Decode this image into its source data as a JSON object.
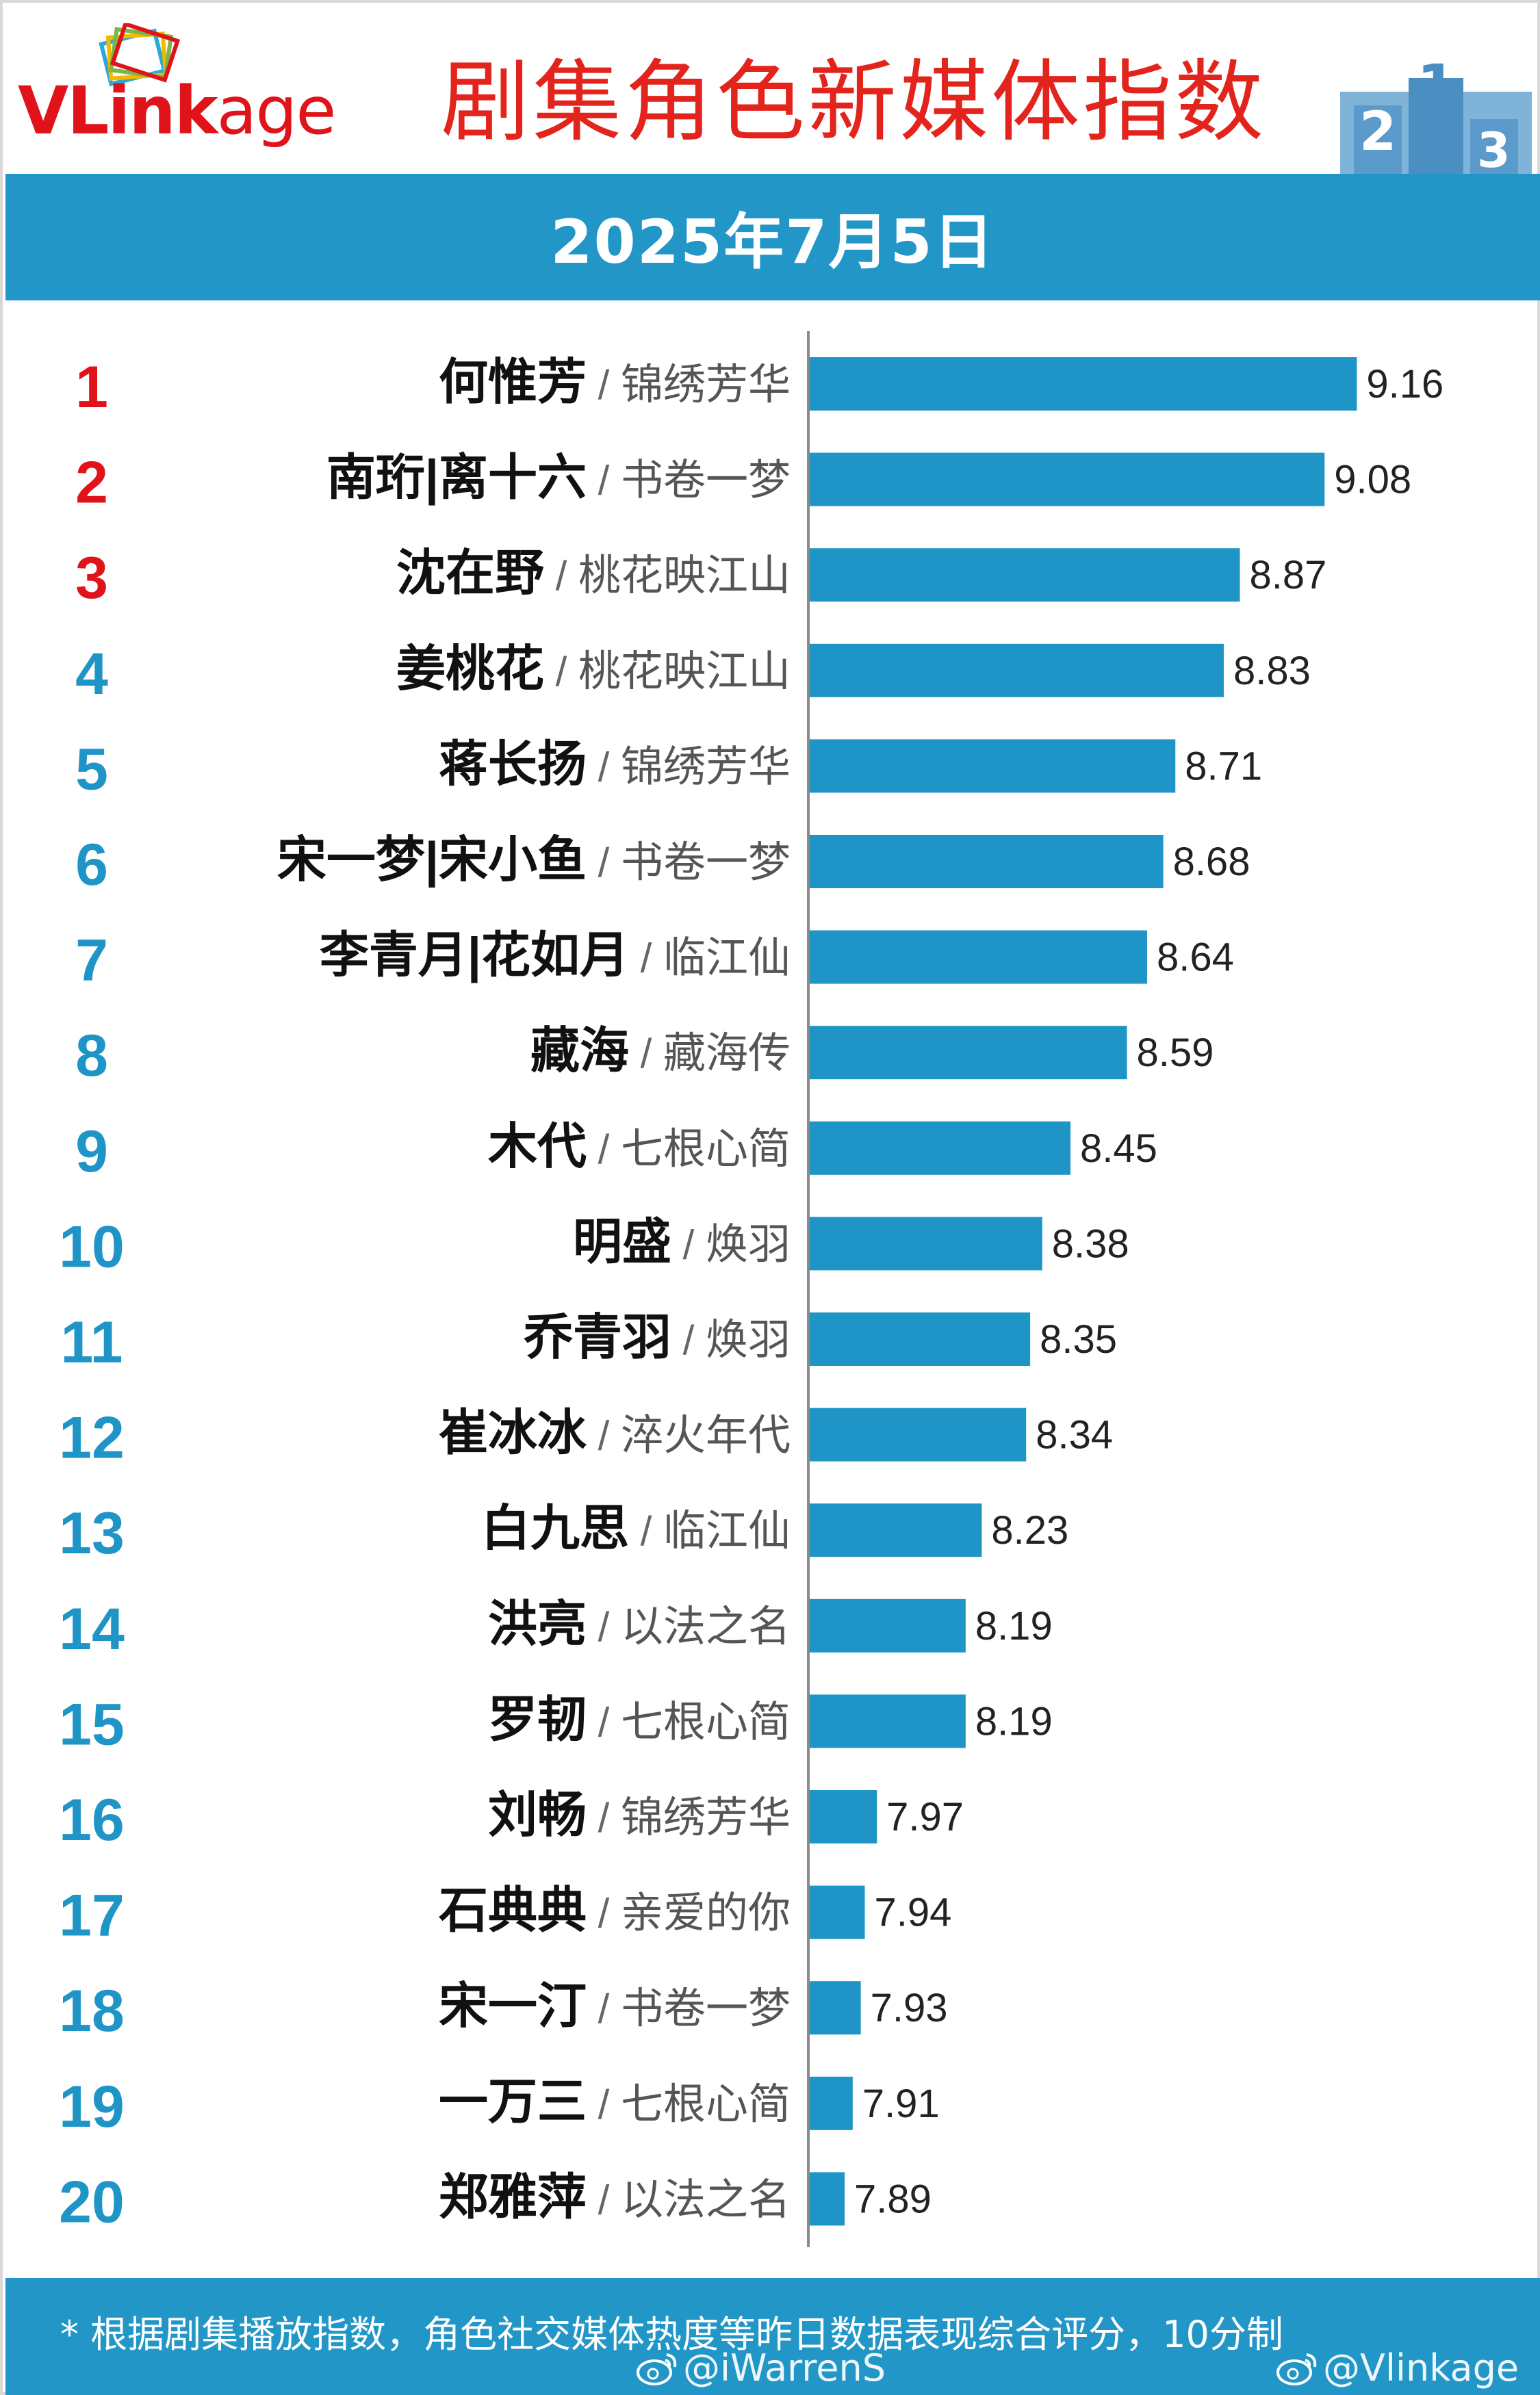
{
  "header": {
    "logo_text_v": "VL",
    "logo_text_link": "ink",
    "logo_text_age": "age",
    "title": "剧集角色新媒体指数",
    "podium_numbers": [
      "2",
      "1",
      "3"
    ]
  },
  "date": "2025年7月5日",
  "colors": {
    "band": "#2196c7",
    "bar": "#1e95c6",
    "rank_top3": "#e0131b",
    "rank_other": "#1e95c6",
    "title": "#e3241d"
  },
  "chart_data": {
    "type": "bar",
    "orientation": "horizontal",
    "title": "剧集角色新媒体指数",
    "subtitle": "2025年7月5日",
    "xlim": [
      7.8,
      9.2
    ],
    "grid": false,
    "rows": [
      {
        "rank": "1",
        "name": "何惟芳",
        "drama": "锦绣芳华",
        "value": 9.16,
        "label": "9.16"
      },
      {
        "rank": "2",
        "name": "南珩|离十六",
        "drama": "书卷一梦",
        "value": 9.08,
        "label": "9.08"
      },
      {
        "rank": "3",
        "name": "沈在野",
        "drama": "桃花映江山",
        "value": 8.87,
        "label": "8.87"
      },
      {
        "rank": "4",
        "name": "姜桃花",
        "drama": "桃花映江山",
        "value": 8.83,
        "label": "8.83"
      },
      {
        "rank": "5",
        "name": "蒋长扬",
        "drama": "锦绣芳华",
        "value": 8.71,
        "label": "8.71"
      },
      {
        "rank": "6",
        "name": "宋一梦|宋小鱼",
        "drama": "书卷一梦",
        "value": 8.68,
        "label": "8.68"
      },
      {
        "rank": "7",
        "name": "李青月|花如月",
        "drama": "临江仙",
        "value": 8.64,
        "label": "8.64"
      },
      {
        "rank": "8",
        "name": "藏海",
        "drama": "藏海传",
        "value": 8.59,
        "label": "8.59"
      },
      {
        "rank": "9",
        "name": "木代",
        "drama": "七根心简",
        "value": 8.45,
        "label": "8.45"
      },
      {
        "rank": "10",
        "name": "明盛",
        "drama": "焕羽",
        "value": 8.38,
        "label": "8.38"
      },
      {
        "rank": "11",
        "name": "乔青羽",
        "drama": "焕羽",
        "value": 8.35,
        "label": "8.35"
      },
      {
        "rank": "12",
        "name": "崔冰冰",
        "drama": "淬火年代",
        "value": 8.34,
        "label": "8.34"
      },
      {
        "rank": "13",
        "name": "白九思",
        "drama": "临江仙",
        "value": 8.23,
        "label": "8.23"
      },
      {
        "rank": "14",
        "name": "洪亮",
        "drama": "以法之名",
        "value": 8.19,
        "label": "8.19"
      },
      {
        "rank": "15",
        "name": "罗韧",
        "drama": "七根心简",
        "value": 8.19,
        "label": "8.19"
      },
      {
        "rank": "16",
        "name": "刘畅",
        "drama": "锦绣芳华",
        "value": 7.97,
        "label": "7.97"
      },
      {
        "rank": "17",
        "name": "石典典",
        "drama": "亲爱的你",
        "value": 7.94,
        "label": "7.94"
      },
      {
        "rank": "18",
        "name": "宋一汀",
        "drama": "书卷一梦",
        "value": 7.93,
        "label": "7.93"
      },
      {
        "rank": "19",
        "name": "一万三",
        "drama": "七根心简",
        "value": 7.91,
        "label": "7.91"
      },
      {
        "rank": "20",
        "name": "郑雅萍",
        "drama": "以法之名",
        "value": 7.89,
        "label": "7.89"
      }
    ]
  },
  "separator": " / ",
  "footer": {
    "note": "* 根据剧集播放指数，角色社交媒体热度等昨日数据表现综合评分，10分制",
    "watermark_1": "@iWarrenS",
    "watermark_2": "@Vlinkage"
  }
}
